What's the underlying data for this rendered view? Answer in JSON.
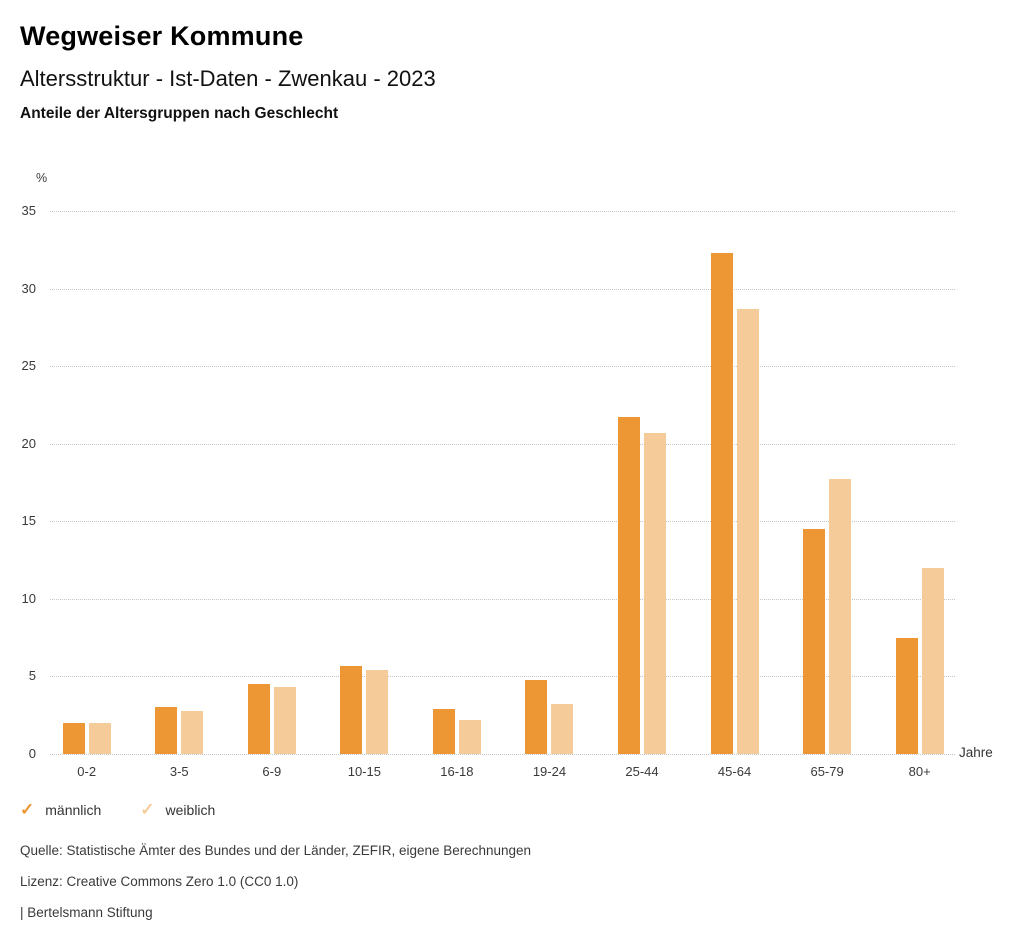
{
  "header": {
    "brand": "Wegweiser Kommune",
    "title": "Altersstruktur - Ist-Daten - Zwenkau - 2023",
    "subtitle": "Anteile der Altersgruppen nach Geschlecht"
  },
  "chart_data": {
    "type": "bar",
    "title": "Anteile der Altersgruppen nach Geschlecht",
    "categories": [
      "0-2",
      "3-5",
      "6-9",
      "10-15",
      "16-18",
      "19-24",
      "25-44",
      "45-64",
      "65-79",
      "80+"
    ],
    "series": [
      {
        "name": "männlich",
        "color": "#ED9634",
        "values": [
          2.0,
          3.0,
          4.5,
          5.7,
          2.9,
          4.8,
          21.7,
          32.3,
          14.5,
          7.5
        ]
      },
      {
        "name": "weiblich",
        "color": "#F5CC99",
        "values": [
          2.0,
          2.8,
          4.3,
          5.4,
          2.2,
          3.2,
          20.7,
          28.7,
          17.7,
          12.0
        ]
      }
    ],
    "xlabel": "Jahre",
    "ylabel": "%",
    "ylim": [
      0,
      35
    ],
    "yticks": [
      0,
      5,
      10,
      15,
      20,
      25,
      30,
      35
    ],
    "grid": "horizontal-dotted",
    "legend_position": "bottom-left",
    "legend_icon": "check-icon"
  },
  "footer": {
    "source": "Quelle: Statistische Ämter des Bundes und der Länder, ZEFIR, eigene Berechnungen",
    "license": "Lizenz: Creative Commons Zero 1.0 (CC0 1.0)",
    "attribution": "| Bertelsmann Stiftung"
  }
}
